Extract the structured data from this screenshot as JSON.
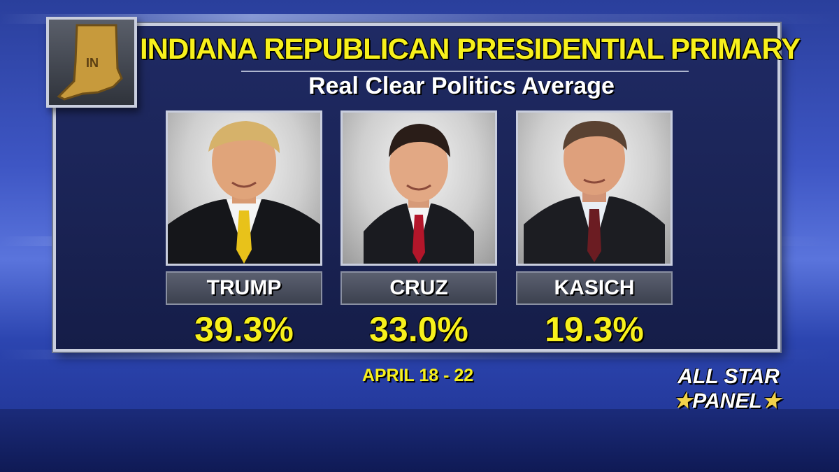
{
  "state_badge": {
    "abbr": "IN"
  },
  "header": {
    "title": "INDIANA REPUBLICAN PRESIDENTIAL PRIMARY",
    "subtitle": "Real Clear Politics Average"
  },
  "candidates": [
    {
      "name": "TRUMP",
      "percent": "39.3%",
      "tie_color": "#e8c21a"
    },
    {
      "name": "CRUZ",
      "percent": "33.0%",
      "tie_color": "#b3162a"
    },
    {
      "name": "KASICH",
      "percent": "19.3%",
      "tie_color": "#6b1c22"
    }
  ],
  "footer": {
    "dates": "APRIL 18 - 22"
  },
  "show_bug": {
    "line1": "ALL STAR",
    "line2": "PANEL"
  },
  "colors": {
    "accent_yellow": "#f7f01c",
    "panel_bg": "#1a2354",
    "badge_gold": "#c79a3c"
  }
}
